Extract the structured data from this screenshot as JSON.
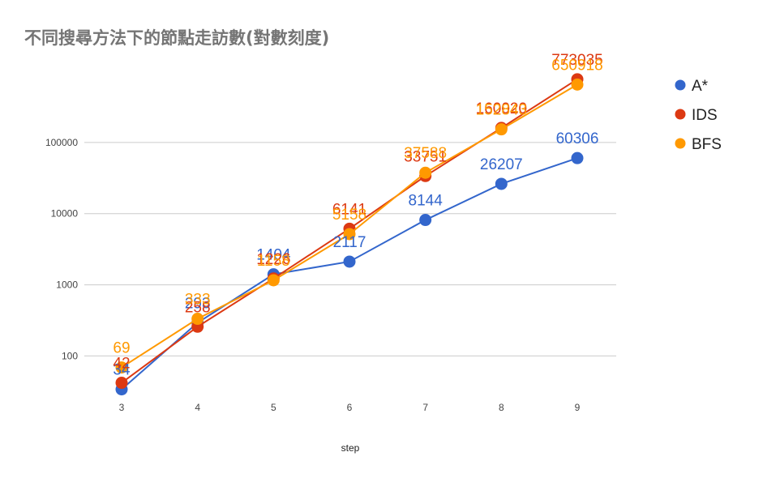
{
  "chart_data": {
    "type": "line",
    "title": "不同搜尋方法下的節點走訪數(對數刻度)",
    "xlabel": "step",
    "ylabel": "",
    "yscale": "log",
    "ylim": [
      28,
      1000000
    ],
    "categories": [
      "3",
      "4",
      "5",
      "6",
      "7",
      "8",
      "9"
    ],
    "y_ticks": [
      "100",
      "1000",
      "10000",
      "100000"
    ],
    "legend_position": "right",
    "series": [
      {
        "name": "A*",
        "color": "#3366cc",
        "values": [
          34,
          293,
          1404,
          2117,
          8144,
          26207,
          60306
        ]
      },
      {
        "name": "IDS",
        "color": "#dc3912",
        "values": [
          42,
          258,
          1226,
          6141,
          33751,
          160020,
          773035
        ]
      },
      {
        "name": "BFS",
        "color": "#ff9900",
        "values": [
          69,
          333,
          1158,
          5158,
          37588,
          152843,
          650918
        ]
      }
    ]
  }
}
